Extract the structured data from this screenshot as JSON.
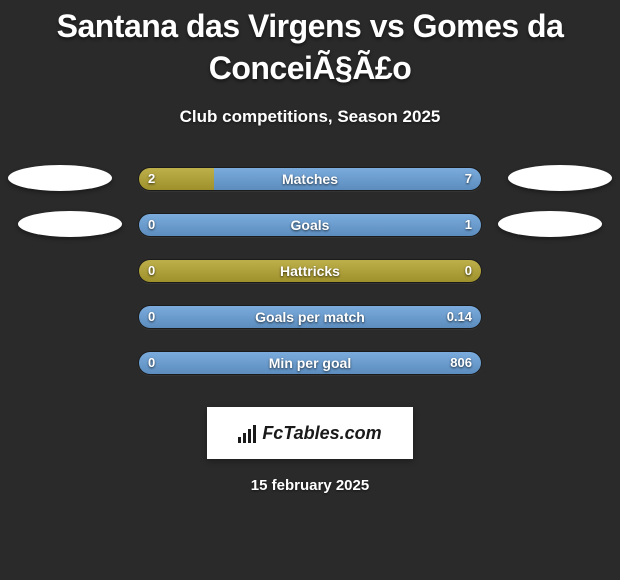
{
  "background_color": "#2a2a2a",
  "text_color": "#ffffff",
  "title": "Santana das Virgens vs Gomes da ConceiÃ§Ã£o",
  "subtitle": "Club competitions, Season 2025",
  "player1_color": "#b4a431",
  "player2_color": "#68a0d8",
  "neutral_bar_color": "#b4a431",
  "logo": {
    "bg": "#ffffff",
    "fg": "#1a1a1a",
    "text": "FcTables.com"
  },
  "date": "15 february 2025",
  "stats": [
    {
      "label": "Matches",
      "left_val": "2",
      "right_val": "7",
      "left_pct": 22,
      "right_pct": 78
    },
    {
      "label": "Goals",
      "left_val": "0",
      "right_val": "1",
      "left_pct": 0,
      "right_pct": 100
    },
    {
      "label": "Hattricks",
      "left_val": "0",
      "right_val": "0",
      "left_pct": 100,
      "right_pct": 0,
      "neutral": true
    },
    {
      "label": "Goals per match",
      "left_val": "0",
      "right_val": "0.14",
      "left_pct": 0,
      "right_pct": 100
    },
    {
      "label": "Min per goal",
      "left_val": "0",
      "right_val": "806",
      "left_pct": 0,
      "right_pct": 100
    }
  ]
}
